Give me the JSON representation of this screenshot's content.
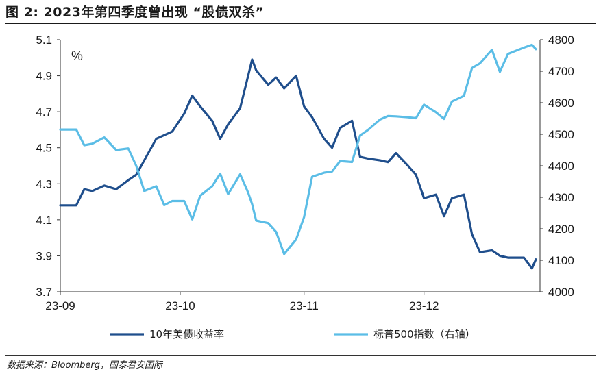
{
  "figure": {
    "title": "图 2:  2023年第四季度曾出现 “股债双杀”",
    "source": "数据来源：Bloomberg，国泰君安国际"
  },
  "chart_data": {
    "type": "line",
    "y_unit_label": "%",
    "x_ticks": [
      "23-09",
      "23-10",
      "23-11",
      "23-12"
    ],
    "y_left": {
      "lim": [
        3.7,
        5.1
      ],
      "ticks": [
        "5.1",
        "4.9",
        "4.7",
        "4.5",
        "4.3",
        "4.1",
        "3.9",
        "3.7"
      ]
    },
    "y_right": {
      "lim": [
        4000,
        4800
      ],
      "ticks": [
        "4800",
        "4700",
        "4600",
        "4500",
        "4400",
        "4300",
        "4200",
        "4100",
        "4000"
      ]
    },
    "grid": false,
    "legend_position": "bottom",
    "series": [
      {
        "name": "10年美债收益率",
        "axis": "left",
        "color": "#1f4e8c",
        "x": [
          "2023-09-01",
          "2023-09-05",
          "2023-09-07",
          "2023-09-09",
          "2023-09-12",
          "2023-09-15",
          "2023-09-18",
          "2023-09-20",
          "2023-09-22",
          "2023-09-25",
          "2023-09-27",
          "2023-09-29",
          "2023-10-02",
          "2023-10-04",
          "2023-10-06",
          "2023-10-09",
          "2023-10-11",
          "2023-10-13",
          "2023-10-16",
          "2023-10-18",
          "2023-10-19",
          "2023-10-20",
          "2023-10-23",
          "2023-10-25",
          "2023-10-27",
          "2023-10-30",
          "2023-11-01",
          "2023-11-03",
          "2023-11-06",
          "2023-11-08",
          "2023-11-10",
          "2023-11-13",
          "2023-11-15",
          "2023-11-17",
          "2023-11-20",
          "2023-11-22",
          "2023-11-24",
          "2023-11-27",
          "2023-11-29",
          "2023-12-01",
          "2023-12-04",
          "2023-12-06",
          "2023-12-08",
          "2023-12-11",
          "2023-12-13",
          "2023-12-15",
          "2023-12-18",
          "2023-12-20",
          "2023-12-22",
          "2023-12-26",
          "2023-12-28",
          "2023-12-29"
        ],
        "values": [
          4.18,
          4.18,
          4.27,
          4.26,
          4.29,
          4.27,
          4.32,
          4.35,
          4.43,
          4.55,
          4.57,
          4.59,
          4.69,
          4.79,
          4.73,
          4.65,
          4.55,
          4.63,
          4.72,
          4.9,
          4.99,
          4.93,
          4.85,
          4.89,
          4.83,
          4.9,
          4.73,
          4.67,
          4.55,
          4.5,
          4.61,
          4.65,
          4.45,
          4.44,
          4.43,
          4.42,
          4.47,
          4.4,
          4.35,
          4.22,
          4.24,
          4.12,
          4.22,
          4.24,
          4.02,
          3.92,
          3.93,
          3.9,
          3.89,
          3.89,
          3.83,
          3.88
        ]
      },
      {
        "name": "标普500指数（右轴）",
        "axis": "right",
        "color": "#5bbde6",
        "x": [
          "2023-09-01",
          "2023-09-05",
          "2023-09-07",
          "2023-09-09",
          "2023-09-12",
          "2023-09-15",
          "2023-09-18",
          "2023-09-20",
          "2023-09-22",
          "2023-09-25",
          "2023-09-27",
          "2023-09-29",
          "2023-10-02",
          "2023-10-04",
          "2023-10-06",
          "2023-10-09",
          "2023-10-11",
          "2023-10-13",
          "2023-10-16",
          "2023-10-18",
          "2023-10-19",
          "2023-10-20",
          "2023-10-23",
          "2023-10-25",
          "2023-10-27",
          "2023-10-30",
          "2023-11-01",
          "2023-11-03",
          "2023-11-06",
          "2023-11-08",
          "2023-11-10",
          "2023-11-13",
          "2023-11-15",
          "2023-11-17",
          "2023-11-20",
          "2023-11-22",
          "2023-11-24",
          "2023-11-27",
          "2023-11-29",
          "2023-12-01",
          "2023-12-04",
          "2023-12-06",
          "2023-12-08",
          "2023-12-11",
          "2023-12-13",
          "2023-12-15",
          "2023-12-18",
          "2023-12-20",
          "2023-12-22",
          "2023-12-26",
          "2023-12-28",
          "2023-12-29"
        ],
        "values": [
          4515,
          4515,
          4465,
          4470,
          4490,
          4450,
          4455,
          4400,
          4320,
          4335,
          4275,
          4288,
          4288,
          4230,
          4305,
          4335,
          4375,
          4310,
          4373,
          4315,
          4278,
          4226,
          4218,
          4190,
          4120,
          4166,
          4237,
          4365,
          4378,
          4382,
          4415,
          4412,
          4496,
          4514,
          4547,
          4558,
          4557,
          4554,
          4551,
          4594,
          4570,
          4549,
          4604,
          4622,
          4710,
          4725,
          4768,
          4698,
          4755,
          4775,
          4784,
          4770
        ]
      }
    ]
  }
}
